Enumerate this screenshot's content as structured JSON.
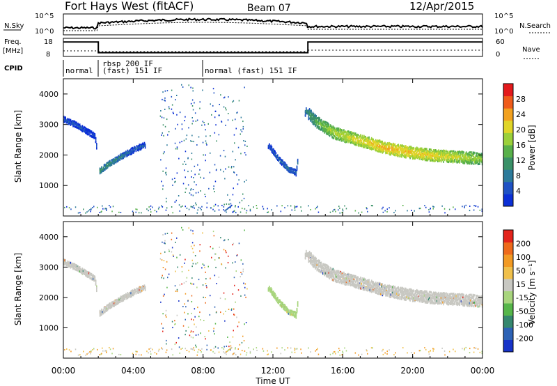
{
  "title": {
    "station": "Fort Hays West (fitACF)",
    "beam": "Beam 07",
    "date": "12/Apr/2015"
  },
  "top_panels": {
    "nsky_label": "N.Sky",
    "nsearch_label": "N.Search",
    "noise_ticks": [
      "10^5",
      "10^0"
    ],
    "freq_label_1": "Freq.",
    "freq_label_2": "[MHz]",
    "freq_ticks": [
      "18",
      "8"
    ],
    "nave_label": "Nave",
    "nave_ticks": [
      "60",
      "0"
    ],
    "cpid_label": "CPID",
    "cpid_segments": [
      {
        "label": "normal",
        "start_h": 0,
        "end_h": 2
      },
      {
        "label": "rbsp 200 IF",
        "start_h": 2,
        "end_h": 8
      },
      {
        "label": "(fast) 151 IF",
        "start_h": 2,
        "end_h": 8
      },
      {
        "label": "normal (fast) 151 IF",
        "start_h": 8,
        "end_h": 24
      }
    ]
  },
  "axes": {
    "ylabel": "Slant Range [km]",
    "xlabel": "Time UT",
    "yticks": [
      "4000",
      "3000",
      "2000",
      "1000"
    ],
    "xticks": [
      "00:00",
      "04:00",
      "08:00",
      "12:00",
      "16:00",
      "20:00",
      "00:00"
    ]
  },
  "colorbars": {
    "power": {
      "label": "Power [dB]",
      "ticks": [
        "28",
        "24",
        "20",
        "16",
        "12",
        "8",
        "4"
      ],
      "colors": [
        "#0b2fd6",
        "#1f52c4",
        "#2c7a9a",
        "#3a9168",
        "#58b04a",
        "#9bd03a",
        "#e0d528",
        "#f2a11f",
        "#ef5b1a",
        "#e31a1c"
      ]
    },
    "velocity": {
      "label": "Velocity [m s⁻¹]",
      "ticks": [
        "200",
        "100",
        "50",
        "15",
        "-15",
        "-50",
        "-100",
        "-200"
      ],
      "colors": [
        "#1733c8",
        "#2d62b5",
        "#35876e",
        "#56b64a",
        "#a8d57d",
        "#c8c8c2",
        "#f0c04b",
        "#f29a24",
        "#ee6a1b",
        "#e3231b"
      ]
    }
  },
  "chart_data": {
    "type": "heatmap",
    "x_unit": "hours UT",
    "xlim": [
      0,
      24
    ],
    "ylim": [
      0,
      4500
    ],
    "power_ridge": [
      {
        "x": 0.0,
        "y": 3200,
        "v": 8
      },
      {
        "x": 0.6,
        "y": 3050,
        "v": 8
      },
      {
        "x": 1.2,
        "y": 2850,
        "v": 7
      },
      {
        "x": 1.8,
        "y": 2650,
        "v": 6
      },
      {
        "x": 2.05,
        "y": 1500,
        "v": 14
      },
      {
        "x": 2.5,
        "y": 1700,
        "v": 13
      },
      {
        "x": 3.2,
        "y": 1950,
        "v": 11
      },
      {
        "x": 4.0,
        "y": 2200,
        "v": 9
      },
      {
        "x": 4.6,
        "y": 2350,
        "v": 8
      },
      {
        "x": 11.8,
        "y": 2300,
        "v": 7
      },
      {
        "x": 12.3,
        "y": 1900,
        "v": 9
      },
      {
        "x": 12.9,
        "y": 1550,
        "v": 10
      },
      {
        "x": 13.3,
        "y": 1450,
        "v": 9
      },
      {
        "x": 13.85,
        "y": 3500,
        "v": 12
      },
      {
        "x": 14.5,
        "y": 3100,
        "v": 16
      },
      {
        "x": 15.5,
        "y": 2750,
        "v": 20
      },
      {
        "x": 17.0,
        "y": 2500,
        "v": 22
      },
      {
        "x": 18.5,
        "y": 2250,
        "v": 24
      },
      {
        "x": 20.0,
        "y": 2100,
        "v": 23
      },
      {
        "x": 21.5,
        "y": 2000,
        "v": 22
      },
      {
        "x": 23.0,
        "y": 1950,
        "v": 20
      },
      {
        "x": 24.0,
        "y": 1900,
        "v": 18
      }
    ],
    "frequency_mhz": [
      {
        "x": 0,
        "y": 17
      },
      {
        "x": 2,
        "y": 17
      },
      {
        "x": 2,
        "y": 10
      },
      {
        "x": 14,
        "y": 10
      },
      {
        "x": 14,
        "y": 17
      },
      {
        "x": 24,
        "y": 17
      }
    ]
  }
}
